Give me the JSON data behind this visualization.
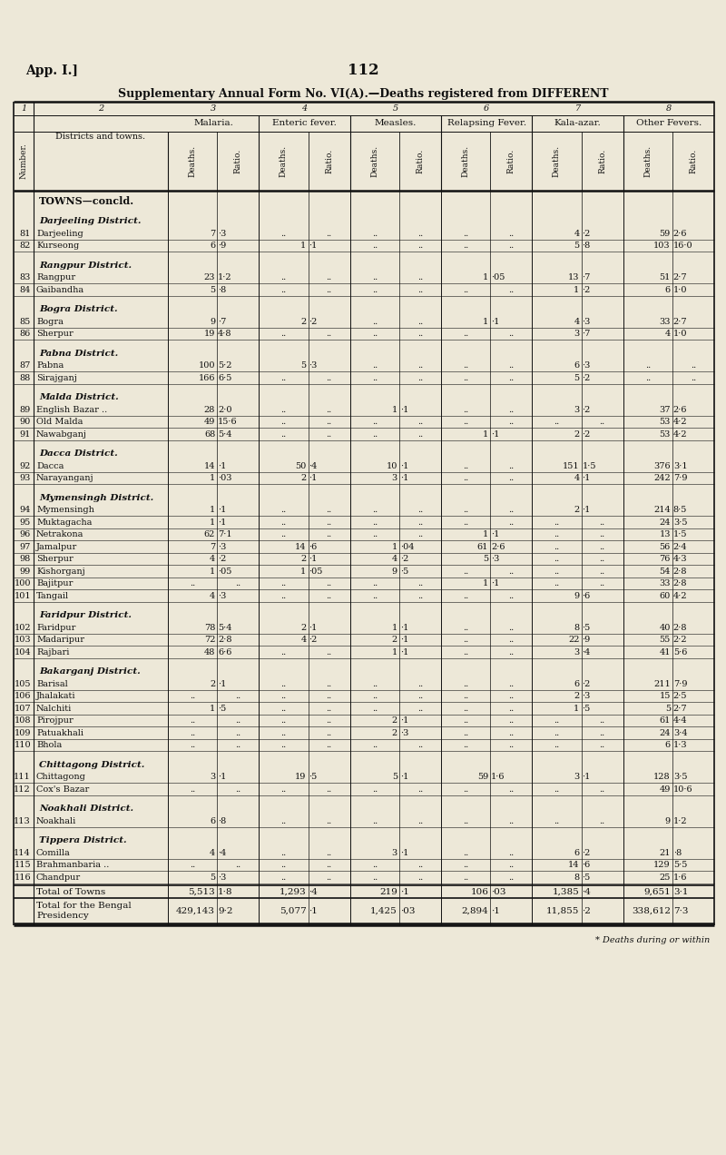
{
  "page_header_left": "App. I.]",
  "page_header_center": "112",
  "title": "Supplementary Annual Form No. VI(A).—Deaths registered from DIFFERENT",
  "col_group_labels": [
    "Malaria.",
    "Enteric fever.",
    "Measles.",
    "Relapsing Fever.",
    "Kala-azar.",
    "Other Fevers."
  ],
  "sections": [
    {
      "type": "header",
      "text": "TOWNS—concld."
    },
    {
      "type": "subheader",
      "text": "Darjeeling District."
    },
    {
      "type": "data",
      "num": "81",
      "name": "Darjeeling",
      "dots": ".. ..",
      "cols": [
        "7",
        "·3",
        "..",
        "..",
        "..",
        "..",
        "..",
        "..",
        "4",
        "·2",
        "59",
        "2·6"
      ]
    },
    {
      "type": "data",
      "num": "82",
      "name": "Kurseong",
      "dots": ".. ..",
      "cols": [
        "6",
        "·9",
        "1",
        "·1",
        "..",
        "..",
        "..",
        "..",
        "5",
        "·8",
        "103",
        "16·0"
      ]
    },
    {
      "type": "subheader",
      "text": "Rangpur District."
    },
    {
      "type": "data",
      "num": "83",
      "name": "Rangpur",
      "dots": ".. ..",
      "cols": [
        "23",
        "1·2",
        "..",
        "..",
        "..",
        "..",
        "1",
        "·05",
        "13",
        "·7",
        "51",
        "2·7"
      ]
    },
    {
      "type": "data",
      "num": "84",
      "name": "Gaibandha",
      "dots": ".. ..",
      "cols": [
        "5",
        "·8",
        "..",
        "..",
        "..",
        "..",
        "..",
        "..",
        "1",
        "·2",
        "6",
        "1·0"
      ]
    },
    {
      "type": "subheader",
      "text": "Bogra District."
    },
    {
      "type": "data",
      "num": "85",
      "name": "Bogra",
      "dots": ".. ..",
      "cols": [
        "9",
        "·7",
        "2",
        "·2",
        "..",
        "..",
        "1",
        "·1",
        "4",
        "·3",
        "33",
        "2·7"
      ]
    },
    {
      "type": "data",
      "num": "86",
      "name": "Sherpur",
      "dots": ".. ..",
      "cols": [
        "19",
        "4·8",
        "..",
        "..",
        "..",
        "..",
        "..",
        "..",
        "3",
        "·7",
        "4",
        "1·0"
      ]
    },
    {
      "type": "subheader",
      "text": "Pabna District."
    },
    {
      "type": "data",
      "num": "87",
      "name": "Pabna",
      "dots": ".. ..",
      "cols": [
        "100",
        "5·2",
        "5",
        "·3",
        "..",
        "..",
        "..",
        "..",
        "6",
        "·3",
        "..",
        ".."
      ]
    },
    {
      "type": "data",
      "num": "88",
      "name": "Sirajganj",
      "dots": ".. ..",
      "cols": [
        "166",
        "6·5",
        "..",
        "..",
        "..",
        "..",
        "..",
        "..",
        "5",
        "·2",
        "..",
        ".."
      ]
    },
    {
      "type": "subheader",
      "text": "Malda District."
    },
    {
      "type": "data",
      "num": "89",
      "name": "English Bazar ..",
      "dots": "..",
      "cols": [
        "28",
        "2·0",
        "..",
        "..",
        "1",
        "·1",
        "..",
        "..",
        "3",
        "·2",
        "37",
        "2·6"
      ]
    },
    {
      "type": "data",
      "num": "90",
      "name": "Old Malda",
      "dots": ".. ..",
      "cols": [
        "49",
        "15·6",
        "..",
        "..",
        "..",
        "..",
        "..",
        "..",
        "..",
        "..",
        "53",
        "4·2"
      ]
    },
    {
      "type": "data",
      "num": "91",
      "name": "Nawabganj",
      "dots": ".. ..",
      "cols": [
        "68",
        "5·4",
        "..",
        "..",
        "..",
        "..",
        "1",
        "·1",
        "2",
        "·2",
        "53",
        "4·2"
      ]
    },
    {
      "type": "subheader",
      "text": "Dacca District."
    },
    {
      "type": "data",
      "num": "92",
      "name": "Dacca",
      "dots": ".. ..",
      "cols": [
        "14",
        "·1",
        "50",
        "·4",
        "10",
        "·1",
        "..",
        "..",
        "151",
        "1·5",
        "376",
        "3·1"
      ]
    },
    {
      "type": "data",
      "num": "93",
      "name": "Narayanganj",
      "dots": "..",
      "cols": [
        "1",
        "·03",
        "2",
        "·1",
        "3",
        "·1",
        "..",
        "..",
        "4",
        "·1",
        "242",
        "7·9"
      ]
    },
    {
      "type": "subheader",
      "text": "Mymensingh District."
    },
    {
      "type": "data",
      "num": "94",
      "name": "Mymensingh",
      "dots": ".. ..",
      "cols": [
        "1",
        "·1",
        "..",
        "..",
        "..",
        "..",
        "..",
        "..",
        "2",
        "·1",
        "214",
        "8·5"
      ]
    },
    {
      "type": "data",
      "num": "95",
      "name": "Muktagacha",
      "dots": ".. ..",
      "cols": [
        "1",
        "·1",
        "..",
        "..",
        "..",
        "..",
        "..",
        "..",
        "..",
        "..",
        "24",
        "3·5"
      ]
    },
    {
      "type": "data",
      "num": "96",
      "name": "Netrakona",
      "dots": ".. ..",
      "cols": [
        "62",
        "7·1",
        "..",
        "..",
        "..",
        "..",
        "1",
        "·1",
        "..",
        "..",
        "13",
        "1·5"
      ]
    },
    {
      "type": "data",
      "num": "97",
      "name": "Jamalpur",
      "dots": ".. ..",
      "cols": [
        "7",
        "·3",
        "14",
        "·6",
        "1",
        "·04",
        "61",
        "2·6",
        "..",
        "..",
        "56",
        "2·4"
      ]
    },
    {
      "type": "data",
      "num": "98",
      "name": "Sherpur",
      "dots": ".. ..",
      "cols": [
        "4",
        "·2",
        "2",
        "·1",
        "4",
        "·2",
        "5",
        "·3",
        "..",
        "..",
        "76",
        "4·3"
      ]
    },
    {
      "type": "data",
      "num": "99",
      "name": "Kishorganj",
      "dots": ".. ..",
      "cols": [
        "1",
        "·05",
        "1",
        "·05",
        "9",
        "·5",
        "..",
        "..",
        "..",
        "..",
        "54",
        "2·8"
      ]
    },
    {
      "type": "data",
      "num": "100",
      "name": "Bajitpur",
      "dots": ".. ..",
      "cols": [
        "..",
        "..",
        "..",
        "..",
        "..",
        "..",
        "1",
        "·1",
        "..",
        "..",
        "33",
        "2·8"
      ]
    },
    {
      "type": "data",
      "num": "101",
      "name": "Tangail",
      "dots": ".. ..",
      "cols": [
        "4",
        "·3",
        "..",
        "..",
        "..",
        "..",
        "..",
        "..",
        "9",
        "·6",
        "60",
        "4·2"
      ]
    },
    {
      "type": "subheader",
      "text": "Faridpur District."
    },
    {
      "type": "data",
      "num": "102",
      "name": "Faridpur",
      "dots": ".. ..",
      "cols": [
        "78",
        "5·4",
        "2",
        "·1",
        "1",
        "·1",
        "..",
        "..",
        "8",
        "·5",
        "40",
        "2·8"
      ]
    },
    {
      "type": "data",
      "num": "103",
      "name": "Madaripur",
      "dots": ".. ..",
      "cols": [
        "72",
        "2·8",
        "4",
        "·2",
        "2",
        "·1",
        "..",
        "..",
        "22",
        "·9",
        "55",
        "2·2"
      ]
    },
    {
      "type": "data",
      "num": "104",
      "name": "Rajbari",
      "dots": ".. ..",
      "cols": [
        "48",
        "6·6",
        "..",
        "..",
        "1",
        "·1",
        "..",
        "..",
        "3",
        "·4",
        "41",
        "5·6"
      ]
    },
    {
      "type": "subheader",
      "text": "Bakarganj District."
    },
    {
      "type": "data",
      "num": "105",
      "name": "Barisal",
      "dots": ".. ..",
      "cols": [
        "2",
        "·1",
        "..",
        "..",
        "..",
        "..",
        "..",
        "..",
        "6",
        "·2",
        "211",
        "7·9"
      ]
    },
    {
      "type": "data",
      "num": "106",
      "name": "Jhalakati",
      "dots": ".. ..",
      "cols": [
        "..",
        "..",
        "..",
        "..",
        "..",
        "..",
        "..",
        "..",
        "2",
        "·3",
        "15",
        "2·5"
      ]
    },
    {
      "type": "data",
      "num": "107",
      "name": "Nalchiti",
      "dots": ".. ..",
      "cols": [
        "1",
        "·5",
        "..",
        "..",
        "..",
        "..",
        "..",
        "..",
        "1",
        "·5",
        "5",
        "2·7"
      ]
    },
    {
      "type": "data",
      "num": "108",
      "name": "Pirojpur",
      "dots": ".. ..",
      "cols": [
        "..",
        "..",
        "..",
        "..",
        "2",
        "·1",
        "..",
        "..",
        "..",
        "..",
        "61",
        "4·4"
      ]
    },
    {
      "type": "data",
      "num": "109",
      "name": "Patuakhali",
      "dots": ".. ..",
      "cols": [
        "..",
        "..",
        "..",
        "..",
        "2",
        "·3",
        "..",
        "..",
        "..",
        "..",
        "24",
        "3·4"
      ]
    },
    {
      "type": "data",
      "num": "110",
      "name": "Bhola",
      "dots": ".. ..",
      "cols": [
        "..",
        "..",
        "..",
        "..",
        "..",
        "..",
        "..",
        "..",
        "..",
        "..",
        "6",
        "1·3"
      ]
    },
    {
      "type": "subheader",
      "text": "Chittagong District."
    },
    {
      "type": "data",
      "num": "111",
      "name": "Chittagong",
      "dots": ".. ..",
      "cols": [
        "3",
        "·1",
        "19",
        "·5",
        "5",
        "·1",
        "59",
        "1·6",
        "3",
        "·1",
        "128",
        "3·5"
      ]
    },
    {
      "type": "data",
      "num": "112",
      "name": "Cox's Bazar",
      "dots": ".. ..",
      "cols": [
        "..",
        "..",
        "..",
        "..",
        "..",
        "..",
        "..",
        "..",
        "..",
        "..",
        "49",
        "10·6"
      ]
    },
    {
      "type": "subheader",
      "text": "Noakhali District."
    },
    {
      "type": "data",
      "num": "113",
      "name": "Noakhali",
      "dots": ".. ..",
      "cols": [
        "6",
        "·8",
        "..",
        "..",
        "..",
        "..",
        "..",
        "..",
        "..",
        "..",
        "9",
        "1·2"
      ]
    },
    {
      "type": "subheader",
      "text": "Tippera District."
    },
    {
      "type": "data",
      "num": "114",
      "name": "Comilla",
      "dots": ".. ..",
      "cols": [
        "4",
        "·4",
        "..",
        "..",
        "3",
        "·1",
        "..",
        "..",
        "6",
        "·2",
        "21",
        "·8"
      ]
    },
    {
      "type": "data",
      "num": "115",
      "name": "Brahmanbaria ..",
      "dots": "..",
      "cols": [
        "..",
        "..",
        "..",
        "..",
        "..",
        "..",
        "..",
        "..",
        "14",
        "·6",
        "129",
        "5·5"
      ]
    },
    {
      "type": "data",
      "num": "116",
      "name": "Chandpur",
      "dots": ".. ..",
      "cols": [
        "5",
        "·3",
        "..",
        "..",
        "..",
        "..",
        "..",
        "..",
        "8",
        "·5",
        "25",
        "1·6"
      ]
    },
    {
      "type": "total",
      "name": "Total of Towns",
      "dots": "..",
      "cols": [
        "5,513",
        "1·8",
        "1,293",
        "·4",
        "219",
        "·1",
        "106",
        "·03",
        "1,385",
        "·4",
        "9,651",
        "3·1"
      ]
    },
    {
      "type": "total2",
      "name": "Total for the Bengal\n    Presidency",
      "dots": "..",
      "cols": [
        "429,143",
        "9·2",
        "5,077",
        "·1",
        "1,425",
        "·03",
        "2,894",
        "·1",
        "11,855",
        "·2",
        "338,612",
        "7·3"
      ]
    }
  ],
  "footnote": "* Deaths during or within",
  "bg_color": "#ede8d8",
  "text_color": "#111111",
  "line_color": "#111111"
}
